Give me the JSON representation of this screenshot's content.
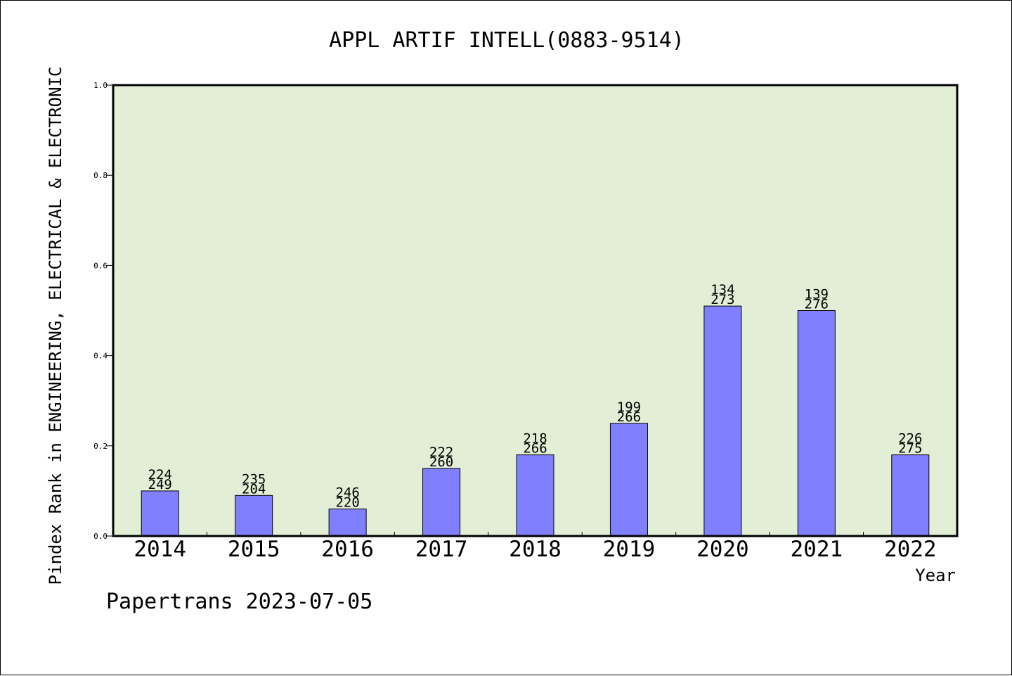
{
  "chart_data": {
    "type": "bar",
    "title": "APPL ARTIF INTELL(0883-9514)",
    "xlabel": "Year",
    "ylabel": "Pindex Rank in ENGINEERING, ELECTRICAL & ELECTRONIC",
    "footer": "Papertrans 2023-07-05",
    "ylim": [
      0,
      1.0
    ],
    "yticks": [
      "0.0",
      "0.2",
      "0.4",
      "0.6",
      "0.8",
      "1.0"
    ],
    "categories": [
      "2014",
      "2015",
      "2016",
      "2017",
      "2018",
      "2019",
      "2020",
      "2021",
      "2022"
    ],
    "values": [
      0.1,
      0.09,
      0.06,
      0.15,
      0.18,
      0.25,
      0.51,
      0.5,
      0.18
    ],
    "labels_top": [
      "224",
      "235",
      "246",
      "222",
      "218",
      "199",
      "134",
      "139",
      "226"
    ],
    "labels_bottom": [
      "249",
      "204",
      "220",
      "260",
      "266",
      "266",
      "273",
      "276",
      "275"
    ],
    "grid": false,
    "colors": {
      "plot_background": "#e2efd6",
      "bar": "#8080ff"
    }
  }
}
